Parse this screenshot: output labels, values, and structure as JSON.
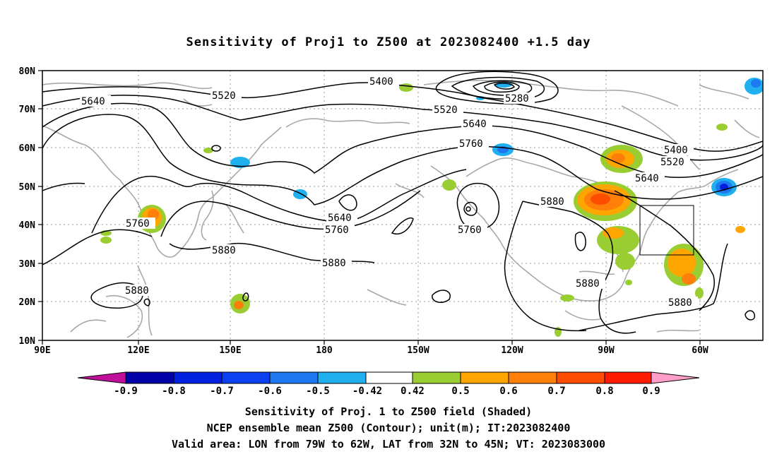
{
  "title": "Sensitivity of Proj1 to Z500 at 2023082400 +1.5 day",
  "map": {
    "lat_labels": [
      "80N",
      "70N",
      "60N",
      "50N",
      "40N",
      "30N",
      "20N",
      "10N"
    ],
    "lon_labels": [
      "90E",
      "120E",
      "150E",
      "180",
      "150W",
      "120W",
      "90W",
      "60W"
    ],
    "contour_labels": [
      {
        "text": "5400"
      },
      {
        "text": "5520"
      },
      {
        "text": "5640"
      },
      {
        "text": "5280"
      },
      {
        "text": "5520"
      },
      {
        "text": "5640"
      },
      {
        "text": "5760"
      },
      {
        "text": "5400"
      },
      {
        "text": "5520"
      },
      {
        "text": "5640"
      },
      {
        "text": "5880"
      },
      {
        "text": "5760"
      },
      {
        "text": "5880"
      },
      {
        "text": "5640"
      },
      {
        "text": "5760"
      },
      {
        "text": "5880"
      },
      {
        "text": "5760"
      },
      {
        "text": "5880"
      },
      {
        "text": "5880"
      },
      {
        "text": "5880"
      }
    ],
    "valid_box": {
      "lon_from": "79W",
      "lon_to": "62W",
      "lat_from": "32N",
      "lat_to": "45N"
    }
  },
  "colorbar": {
    "labels": [
      "-0.9",
      "-0.8",
      "-0.7",
      "-0.6",
      "-0.5",
      "-0.42",
      "0.42",
      "0.5",
      "0.6",
      "0.7",
      "0.8",
      "0.9"
    ],
    "colors": {
      "neg_tip": "#c0109a",
      "c1": "#0000a8",
      "c2": "#0020e0",
      "c3": "#0a40f0",
      "c4": "#1e78f0",
      "c5": "#20b0f0",
      "c6": "#10c8f8",
      "neutral": "#ffffff",
      "p1": "#9acd32",
      "p2": "#ffa500",
      "p3": "#ff7f0a",
      "p4": "#ff4d00",
      "p5": "#ff1a00",
      "pos_tip": "#ff9ec8"
    }
  },
  "footer": {
    "line1": "Sensitivity of Proj. 1 to Z500 field (Shaded)",
    "line2": "NCEP ensemble mean Z500 (Contour); unit(m); IT:2023082400",
    "line3": "Valid area: LON from 79W to 62W, LAT from 32N to 45N; VT: 2023083000"
  }
}
